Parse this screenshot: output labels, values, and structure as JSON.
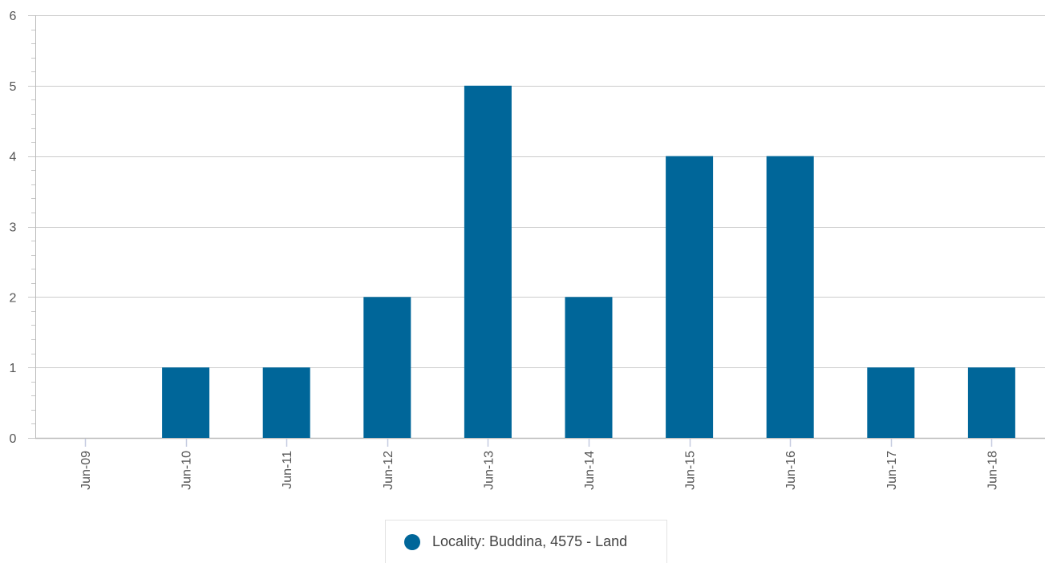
{
  "chart_data": {
    "type": "bar",
    "categories": [
      "Jun-09",
      "Jun-10",
      "Jun-11",
      "Jun-12",
      "Jun-13",
      "Jun-14",
      "Jun-15",
      "Jun-16",
      "Jun-17",
      "Jun-18"
    ],
    "series": [
      {
        "name": "Locality: Buddina, 4575 - Land",
        "values": [
          0,
          1,
          1,
          2,
          5,
          2,
          4,
          4,
          1,
          1
        ],
        "color": "#006699"
      }
    ],
    "yticks": [
      "0",
      "1",
      "2",
      "3",
      "4",
      "5",
      "6"
    ],
    "ylim": [
      0,
      6
    ],
    "grid": true,
    "legend_position": "bottom-center",
    "colors": {
      "grid": "#cccccc",
      "axis": "#bbbbbb",
      "tick_mark": "#c5cbe0",
      "minor_tick": "#c8c8c8"
    }
  }
}
